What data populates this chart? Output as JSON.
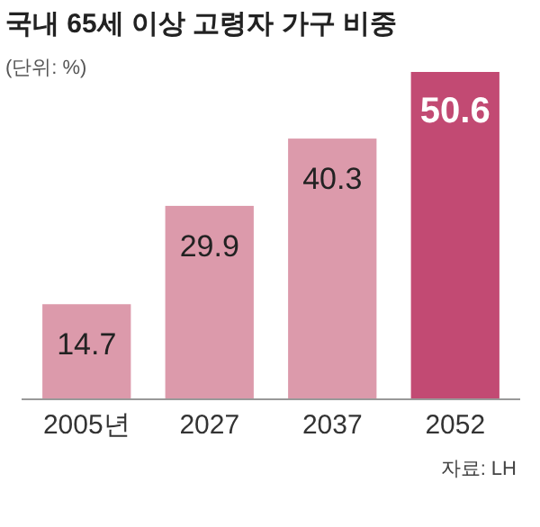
{
  "chart_data": {
    "type": "bar",
    "title": "국내 65세 이상 고령자 가구 비중",
    "subtitle": "(단위: %)",
    "categories": [
      "2005년",
      "2027",
      "2037",
      "2052"
    ],
    "values": [
      14.7,
      29.9,
      40.3,
      50.6
    ],
    "colors": [
      "#dc9aab",
      "#dc9aab",
      "#dc9aab",
      "#c24a73"
    ],
    "data_labels": true,
    "annotations": [
      "자료: LH"
    ]
  }
}
